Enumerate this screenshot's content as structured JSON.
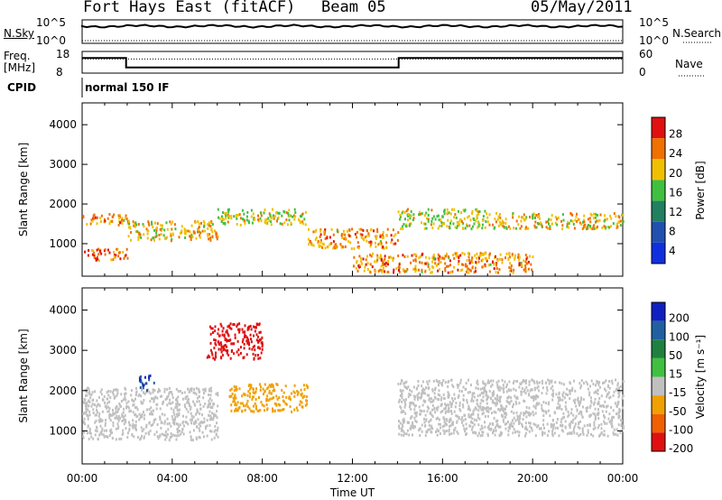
{
  "header": {
    "radar": "Fort Hays East (fitACF)",
    "beam": "Beam 05",
    "date": "05/May/2011"
  },
  "noise_panel": {
    "left_label": "N.Sky",
    "right_label": "N.Search",
    "left_ticks": [
      "10^5",
      "10^0"
    ],
    "right_ticks": [
      "10^5",
      "10^0"
    ]
  },
  "freq_panel": {
    "left_label_1": "Freq.",
    "left_label_2": "[MHz]",
    "left_ticks": [
      "18",
      "8"
    ],
    "right_label": "Nave",
    "right_ticks": [
      "60",
      "0"
    ],
    "freq_mhz_series": [
      {
        "t_hours": 0.0,
        "mhz": 15.0
      },
      {
        "t_hours": 1.95,
        "mhz": 15.0
      },
      {
        "t_hours": 1.95,
        "mhz": 10.6
      },
      {
        "t_hours": 14.05,
        "mhz": 10.6
      },
      {
        "t_hours": 14.05,
        "mhz": 15.0
      },
      {
        "t_hours": 24.0,
        "mhz": 15.0
      }
    ],
    "nave_level": 14.5
  },
  "cpid": {
    "label": "CPID",
    "mode": "normal 150 IF"
  },
  "power_panel": {
    "ylabel": "Slant Range [km]",
    "yticks": [
      "4000",
      "3000",
      "2000",
      "1000"
    ],
    "colorbar_label": "Power [dB]",
    "colorbar_ticks": [
      "28",
      "24",
      "20",
      "16",
      "12",
      "8",
      "4"
    ],
    "colors": [
      "#1030e0",
      "#2050b0",
      "#208060",
      "#40c040",
      "#f0c000",
      "#f07000",
      "#e01010"
    ]
  },
  "velocity_panel": {
    "ylabel": "Slant Range [km]",
    "yticks": [
      "4000",
      "3000",
      "2000",
      "1000"
    ],
    "colorbar_label": "Velocity [m s⁻¹]",
    "colorbar_ticks": [
      "200",
      "100",
      "50",
      "15",
      "-15",
      "-50",
      "-100",
      "-200"
    ],
    "colors": [
      "#1020c0",
      "#2060a0",
      "#208040",
      "#40c040",
      "#c0c0c0",
      "#f0a000",
      "#f06000",
      "#e01010"
    ]
  },
  "x_axis": {
    "ticks": [
      "00:00",
      "04:00",
      "08:00",
      "12:00",
      "16:00",
      "20:00",
      "00:00"
    ],
    "label": "Time UT"
  },
  "chart_data": {
    "type": "heatmap",
    "title": "Fort Hays East (fitACF)",
    "xlabel": "Time UT",
    "ylabel": "Slant Range [km]",
    "xlim_hours": [
      0,
      24
    ],
    "ylim_km": [
      180,
      4550
    ],
    "panels": [
      {
        "name": "Power",
        "unit": "dB",
        "color_range": [
          0,
          30
        ],
        "bands": [
          {
            "t_start": 0.0,
            "t_end": 2.0,
            "range_km": [
              1500,
              1800
            ],
            "value": 22
          },
          {
            "t_start": 0.0,
            "t_end": 2.0,
            "range_km": [
              600,
              900
            ],
            "value": 24
          },
          {
            "t_start": 2.0,
            "t_end": 6.0,
            "range_km": [
              1100,
              1600
            ],
            "value": 20
          },
          {
            "t_start": 6.0,
            "t_end": 10.0,
            "range_km": [
              1500,
              1900
            ],
            "value": 18
          },
          {
            "t_start": 10.0,
            "t_end": 14.0,
            "range_km": [
              900,
              1400
            ],
            "value": 22
          },
          {
            "t_start": 14.0,
            "t_end": 18.0,
            "range_km": [
              1400,
              1900
            ],
            "value": 18
          },
          {
            "t_start": 18.0,
            "t_end": 24.0,
            "range_km": [
              1400,
              1800
            ],
            "value": 20
          },
          {
            "t_start": 12.0,
            "t_end": 20.0,
            "range_km": [
              300,
              800
            ],
            "value": 22
          }
        ]
      },
      {
        "name": "Velocity",
        "unit": "m/s",
        "color_range": [
          -250,
          250
        ],
        "bands": [
          {
            "t_start": 0.0,
            "t_end": 6.0,
            "range_km": [
              800,
              2100
            ],
            "value": 0
          },
          {
            "t_start": 6.5,
            "t_end": 10.0,
            "range_km": [
              1500,
              2200
            ],
            "value": -40
          },
          {
            "t_start": 5.5,
            "t_end": 8.0,
            "range_km": [
              2800,
              3700
            ],
            "value": -220
          },
          {
            "t_start": 2.5,
            "t_end": 3.2,
            "range_km": [
              2000,
              2400
            ],
            "value": 200
          },
          {
            "t_start": 14.0,
            "t_end": 24.0,
            "range_km": [
              900,
              2300
            ],
            "value": 0
          }
        ]
      }
    ]
  }
}
